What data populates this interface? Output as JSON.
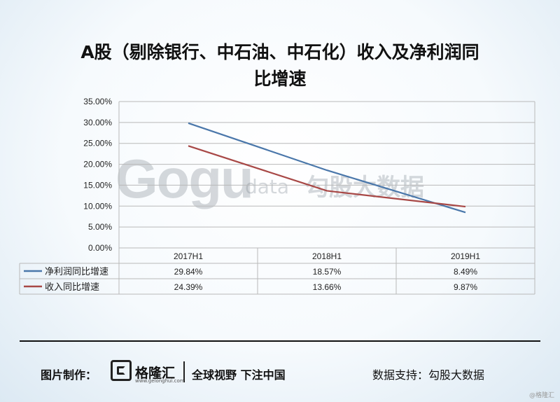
{
  "chart_data": {
    "type": "line",
    "title_line1": "A股（剔除银行、中石油、中石化）收入及净利润同",
    "title_line2": "比增速",
    "categories": [
      "2017H1",
      "2018H1",
      "2019H1"
    ],
    "series": [
      {
        "name": "净利润同比增速",
        "values": [
          29.84,
          18.57,
          8.49
        ],
        "labels": [
          "29.84%",
          "18.57%",
          "8.49%"
        ],
        "color": "#4a77aa"
      },
      {
        "name": "收入同比增速",
        "values": [
          24.39,
          13.66,
          9.87
        ],
        "labels": [
          "24.39%",
          "13.66%",
          "9.87%"
        ],
        "color": "#a84846"
      }
    ],
    "y_ticks": [
      "0.00%",
      "5.00%",
      "10.00%",
      "15.00%",
      "20.00%",
      "25.00%",
      "30.00%",
      "35.00%"
    ],
    "ylim": [
      0,
      35
    ],
    "grid": true,
    "legend": "data-table"
  },
  "watermark": {
    "logo": "Gogu",
    "sub": "data",
    "text": "勾股大数据"
  },
  "footer": {
    "credit_label": "图片制作：",
    "brand_name": "格隆汇",
    "brand_url": "www.gelonghui.com",
    "slogan": "全球视野 下注中国",
    "source": "数据支持：勾股大数据",
    "corner": "@格隆汇"
  }
}
